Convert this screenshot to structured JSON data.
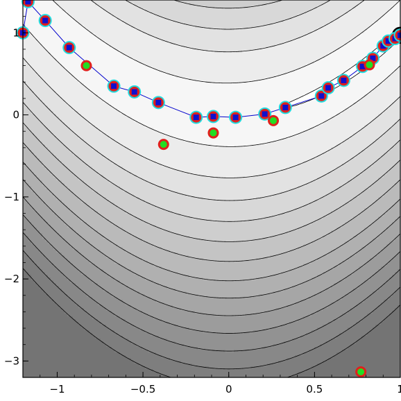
{
  "chart_data": {
    "type": "contour",
    "title": "",
    "xlabel": "",
    "ylabel": "",
    "xlim": [
      -1.2,
      1.0
    ],
    "ylim": [
      -3.2,
      1.4
    ],
    "grid": false,
    "x_tick_labels": [
      "-1",
      "-0.5",
      "0",
      "0.5",
      "1"
    ],
    "x_tick_values": [
      -1,
      -0.5,
      0,
      0.5,
      1
    ],
    "y_tick_labels": [
      "1",
      "0",
      "-1",
      "-2",
      "-3"
    ],
    "y_tick_values": [
      1,
      0,
      -1,
      -2,
      -3
    ],
    "background_function": "f(x,y) = 100*(y - x^2)^2 + (1 - x)^2",
    "contour_levels": [
      0.5,
      16,
      60,
      110,
      170,
      240,
      320,
      410,
      500,
      600,
      710,
      830,
      960,
      1100
    ],
    "contour_shades": [
      "#ffffff",
      "#f6f6f6",
      "#ececec",
      "#e2e2e2",
      "#d8d8d8",
      "#cecece",
      "#c4c4c4",
      "#bababa",
      "#b0b0b0",
      "#a6a6a6",
      "#9c9c9c",
      "#929292",
      "#888888",
      "#7e7e7e",
      "#747474"
    ],
    "series": [
      {
        "type": "line",
        "color": "#0000cc",
        "marker_fill": "#1010cc",
        "marker_ring_inner": "#e0201c",
        "marker_ring_outer": "#22dde0",
        "x": [
          -1.2,
          -1.17,
          -1.07,
          -0.93,
          -0.67,
          -0.55,
          -0.41,
          -0.19,
          -0.09,
          0.04,
          0.21,
          0.33,
          0.54,
          0.58,
          0.67,
          0.78,
          0.84,
          0.9,
          0.93,
          0.97,
          1.0
        ],
        "y": [
          1.0,
          1.38,
          1.15,
          0.82,
          0.35,
          0.28,
          0.15,
          -0.03,
          -0.02,
          -0.03,
          0.01,
          0.09,
          0.23,
          0.33,
          0.42,
          0.59,
          0.69,
          0.84,
          0.9,
          0.93,
          0.97
        ]
      },
      {
        "type": "scatter",
        "marker_fill": "#22dd22",
        "marker_ring": "#e0201c",
        "x": [
          -0.83,
          -0.38,
          -0.09,
          0.26,
          0.82,
          0.77
        ],
        "y": [
          0.6,
          -0.36,
          -0.22,
          -0.07,
          0.61,
          -3.2
        ]
      }
    ],
    "end_marker": {
      "x": 1.0,
      "y": 0.97,
      "color": "#000000"
    }
  }
}
